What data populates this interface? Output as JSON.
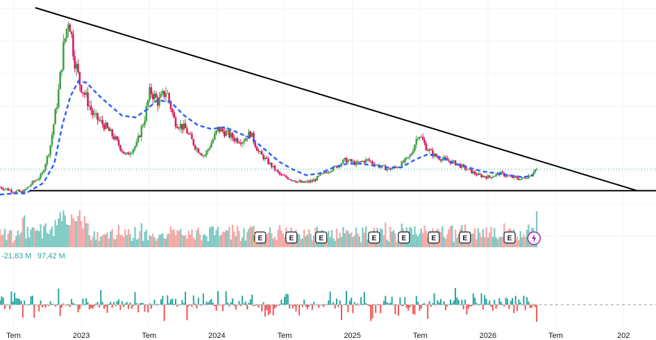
{
  "chart_data": {
    "type": "candlestick",
    "x_ticks": [
      {
        "label": "Tem",
        "t": 2021.5
      },
      {
        "label": "2023",
        "t": 2022.0
      },
      {
        "label": "Tem",
        "t": 2022.5
      },
      {
        "label": "2024",
        "t": 2023.0
      },
      {
        "label": "Tem",
        "t": 2023.5
      },
      {
        "label": "2025",
        "t": 2024.0
      },
      {
        "label": "Tem",
        "t": 2024.5
      },
      {
        "label": "2026",
        "t": 2025.0
      },
      {
        "label": "Tem",
        "t": 2025.5
      },
      {
        "label": "202",
        "t": 2026.0
      }
    ],
    "x_range": [
      2021.4,
      2026.24
    ],
    "y_range": [
      0,
      105
    ],
    "price_path": [
      [
        2021.4,
        8
      ],
      [
        2021.5,
        6
      ],
      [
        2021.58,
        5
      ],
      [
        2021.65,
        10
      ],
      [
        2021.72,
        14
      ],
      [
        2021.78,
        28
      ],
      [
        2021.84,
        55
      ],
      [
        2021.88,
        80
      ],
      [
        2021.92,
        97
      ],
      [
        2021.96,
        75
      ],
      [
        2022.0,
        62
      ],
      [
        2022.05,
        54
      ],
      [
        2022.1,
        45
      ],
      [
        2022.18,
        40
      ],
      [
        2022.26,
        33
      ],
      [
        2022.34,
        24
      ],
      [
        2022.42,
        30
      ],
      [
        2022.48,
        44
      ],
      [
        2022.52,
        58
      ],
      [
        2022.58,
        52
      ],
      [
        2022.64,
        58
      ],
      [
        2022.7,
        42
      ],
      [
        2022.78,
        38
      ],
      [
        2022.86,
        28
      ],
      [
        2022.92,
        24
      ],
      [
        2022.98,
        32
      ],
      [
        2023.02,
        38
      ],
      [
        2023.08,
        36
      ],
      [
        2023.14,
        33
      ],
      [
        2023.2,
        32
      ],
      [
        2023.26,
        36
      ],
      [
        2023.32,
        26
      ],
      [
        2023.4,
        20
      ],
      [
        2023.48,
        14
      ],
      [
        2023.56,
        12
      ],
      [
        2023.64,
        10
      ],
      [
        2023.72,
        11
      ],
      [
        2023.8,
        15
      ],
      [
        2023.88,
        18
      ],
      [
        2023.96,
        22
      ],
      [
        2024.04,
        20
      ],
      [
        2024.12,
        22
      ],
      [
        2024.2,
        19
      ],
      [
        2024.28,
        17
      ],
      [
        2024.36,
        19
      ],
      [
        2024.44,
        24
      ],
      [
        2024.5,
        36
      ],
      [
        2024.56,
        28
      ],
      [
        2024.62,
        24
      ],
      [
        2024.7,
        22
      ],
      [
        2024.78,
        20
      ],
      [
        2024.86,
        17
      ],
      [
        2024.94,
        14
      ],
      [
        2025.02,
        13
      ],
      [
        2025.1,
        15
      ],
      [
        2025.18,
        13
      ],
      [
        2025.26,
        12
      ],
      [
        2025.32,
        14
      ],
      [
        2025.36,
        17
      ]
    ],
    "ma_path": [
      [
        2021.4,
        4
      ],
      [
        2021.6,
        5
      ],
      [
        2021.72,
        10
      ],
      [
        2021.8,
        20
      ],
      [
        2021.86,
        40
      ],
      [
        2021.92,
        55
      ],
      [
        2021.98,
        63
      ],
      [
        2022.04,
        62
      ],
      [
        2022.12,
        56
      ],
      [
        2022.2,
        51
      ],
      [
        2022.3,
        45
      ],
      [
        2022.4,
        44
      ],
      [
        2022.48,
        48
      ],
      [
        2022.56,
        53
      ],
      [
        2022.66,
        52
      ],
      [
        2022.76,
        45
      ],
      [
        2022.86,
        40
      ],
      [
        2022.96,
        38
      ],
      [
        2023.06,
        39
      ],
      [
        2023.16,
        36
      ],
      [
        2023.26,
        33
      ],
      [
        2023.36,
        27
      ],
      [
        2023.46,
        21
      ],
      [
        2023.56,
        17
      ],
      [
        2023.66,
        14
      ],
      [
        2023.76,
        15
      ],
      [
        2023.86,
        18
      ],
      [
        2023.96,
        20
      ],
      [
        2024.06,
        20
      ],
      [
        2024.16,
        19
      ],
      [
        2024.26,
        18
      ],
      [
        2024.36,
        18
      ],
      [
        2024.46,
        22
      ],
      [
        2024.56,
        25
      ],
      [
        2024.66,
        23
      ],
      [
        2024.76,
        20
      ],
      [
        2024.86,
        18
      ],
      [
        2024.96,
        16
      ],
      [
        2025.06,
        15
      ],
      [
        2025.16,
        14
      ],
      [
        2025.26,
        13
      ],
      [
        2025.34,
        14
      ]
    ],
    "trendlines": [
      {
        "name": "resistance",
        "from": [
          2021.66,
          101
        ],
        "to": [
          2026.1,
          6
        ]
      },
      {
        "name": "support",
        "from": [
          2021.62,
          6
        ],
        "to": [
          2026.24,
          6
        ]
      }
    ],
    "earnings_markers": [
      2023.32,
      2023.55,
      2023.77,
      2024.16,
      2024.38,
      2024.6,
      2024.83,
      2025.16
    ],
    "dividend_marker": 2025.34,
    "oscillator": {
      "value_1": "-21,83 M",
      "value_2": "97,42 M"
    },
    "colors": {
      "up": "#26a69a",
      "down": "#ef5350",
      "up_green": "#4caf50",
      "candle_up": "#43a047",
      "candle_down": "#d81b60",
      "ma": "#2962ff",
      "trend": "#000000",
      "vol_up": "#80cbc4",
      "vol_down": "#f5a9a7",
      "price_dotted": "#26a69a",
      "marker_purple": "#9c27b0"
    }
  }
}
